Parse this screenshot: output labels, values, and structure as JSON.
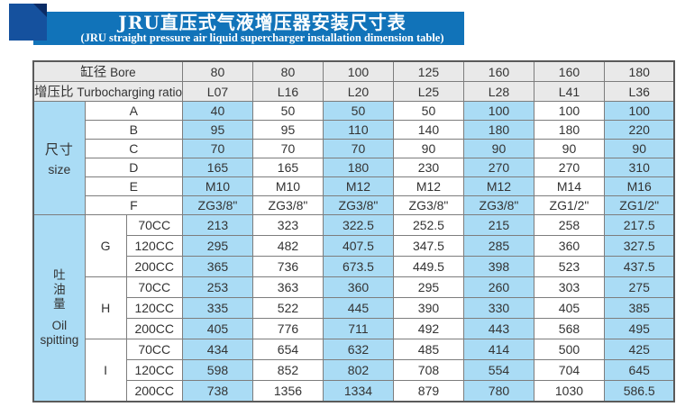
{
  "banner": {
    "title": "JRU直压式气液增压器安装尺寸表",
    "subtitle": "(JRU straight pressure air liquid supercharger installation dimension table)"
  },
  "colors": {
    "cell_blue": "#aadcf5",
    "header_gray": "#e9e9e9",
    "border": "#7d7d7d",
    "banner_blue": "#1173b9",
    "square_blue": "#15519e",
    "fold_blue": "#0a2c66"
  },
  "table": {
    "header_rows": [
      {
        "label_zh": "缸径",
        "label_en": "Bore",
        "values": [
          "80",
          "80",
          "100",
          "125",
          "160",
          "160",
          "180"
        ]
      },
      {
        "label_zh": "增压比",
        "label_en": "Turbocharging ratio",
        "values": [
          "L07",
          "L16",
          "L20",
          "L25",
          "L28",
          "L41",
          "L36"
        ]
      }
    ],
    "size_section": {
      "label_zh": "尺寸",
      "label_en": "size",
      "rows": [
        {
          "label": "A",
          "values": [
            "40",
            "50",
            "50",
            "50",
            "100",
            "100",
            "100"
          ]
        },
        {
          "label": "B",
          "values": [
            "95",
            "95",
            "110",
            "140",
            "180",
            "180",
            "220"
          ]
        },
        {
          "label": "C",
          "values": [
            "70",
            "70",
            "70",
            "90",
            "90",
            "90",
            "90"
          ]
        },
        {
          "label": "D",
          "values": [
            "165",
            "165",
            "180",
            "230",
            "270",
            "270",
            "310"
          ]
        },
        {
          "label": "E",
          "values": [
            "M10",
            "M10",
            "M12",
            "M12",
            "M12",
            "M14",
            "M16"
          ]
        },
        {
          "label": "F",
          "values": [
            "ZG3/8\"",
            "ZG3/8\"",
            "ZG3/8\"",
            "ZG3/8\"",
            "ZG3/8\"",
            "ZG1/2\"",
            "ZG1/2\""
          ]
        }
      ]
    },
    "oil_section": {
      "label_zh": "吐油量",
      "label_en": "Oil spitting",
      "groups": [
        {
          "label": "G",
          "rows": [
            {
              "label": "70CC",
              "values": [
                "213",
                "323",
                "322.5",
                "252.5",
                "215",
                "258",
                "217.5"
              ]
            },
            {
              "label": "120CC",
              "values": [
                "295",
                "482",
                "407.5",
                "347.5",
                "285",
                "360",
                "327.5"
              ]
            },
            {
              "label": "200CC",
              "values": [
                "365",
                "736",
                "673.5",
                "449.5",
                "398",
                "523",
                "437.5"
              ]
            }
          ]
        },
        {
          "label": "H",
          "rows": [
            {
              "label": "70CC",
              "values": [
                "253",
                "363",
                "360",
                "295",
                "260",
                "303",
                "275"
              ]
            },
            {
              "label": "120CC",
              "values": [
                "335",
                "522",
                "445",
                "390",
                "330",
                "405",
                "385"
              ]
            },
            {
              "label": "200CC",
              "values": [
                "405",
                "776",
                "711",
                "492",
                "443",
                "568",
                "495"
              ]
            }
          ]
        },
        {
          "label": "I",
          "rows": [
            {
              "label": "70CC",
              "values": [
                "434",
                "654",
                "632",
                "485",
                "414",
                "500",
                "425"
              ]
            },
            {
              "label": "120CC",
              "values": [
                "598",
                "852",
                "802",
                "708",
                "554",
                "704",
                "645"
              ]
            },
            {
              "label": "200CC",
              "values": [
                "738",
                "1356",
                "1334",
                "879",
                "780",
                "1030",
                "586.5"
              ]
            }
          ]
        }
      ]
    }
  }
}
